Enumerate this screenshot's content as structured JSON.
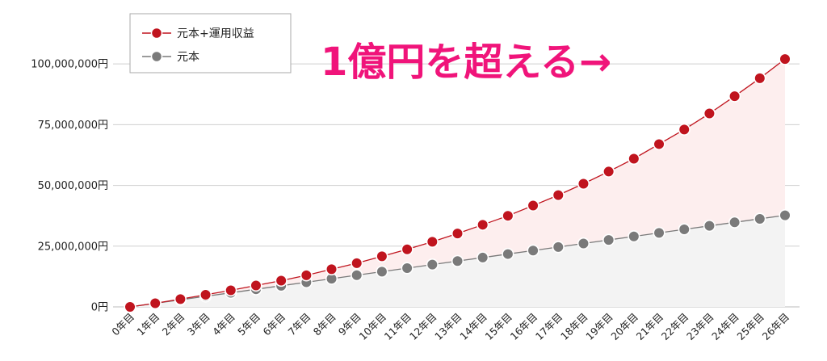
{
  "chart_data": {
    "type": "area",
    "categories": [
      "0年目",
      "1年目",
      "2年目",
      "3年目",
      "4年目",
      "5年目",
      "6年目",
      "7年目",
      "8年目",
      "9年目",
      "10年目",
      "11年目",
      "12年目",
      "13年目",
      "14年目",
      "15年目",
      "16年目",
      "17年目",
      "18年目",
      "19年目",
      "20年目",
      "21年目",
      "22年目",
      "23年目",
      "24年目",
      "25年目",
      "26年目"
    ],
    "series": [
      {
        "name": "元本+運用収益",
        "color": "#c0141e",
        "fill": "#fdeeee",
        "values": [
          0,
          1500000,
          3200000,
          5000000,
          6800000,
          8800000,
          10800000,
          13000000,
          15500000,
          18000000,
          20800000,
          23700000,
          26800000,
          30200000,
          33800000,
          37500000,
          41700000,
          46000000,
          50700000,
          55700000,
          61000000,
          67000000,
          73000000,
          79600000,
          86700000,
          94100000,
          102000000
        ]
      },
      {
        "name": "元本",
        "color": "#7a7a7a",
        "fill": "#f3f3f3",
        "values": [
          0,
          1450000,
          2900000,
          4350000,
          5800000,
          7250000,
          8700000,
          10150000,
          11600000,
          13050000,
          14500000,
          15950000,
          17400000,
          18850000,
          20300000,
          21750000,
          23200000,
          24650000,
          26100000,
          27550000,
          29000000,
          30450000,
          31900000,
          33350000,
          34800000,
          36250000,
          37700000
        ]
      }
    ],
    "yticks": [
      0,
      25000000,
      50000000,
      75000000,
      100000000
    ],
    "ytick_labels": [
      "0円",
      "25,000,000円",
      "50,000,000円",
      "75,000,000円",
      "100,000,000円"
    ],
    "ylim": [
      0,
      120000000
    ],
    "legend_position": "top-left",
    "annotation": {
      "text": "1億円を超える→",
      "color": "#f0147a"
    },
    "grid": true
  }
}
